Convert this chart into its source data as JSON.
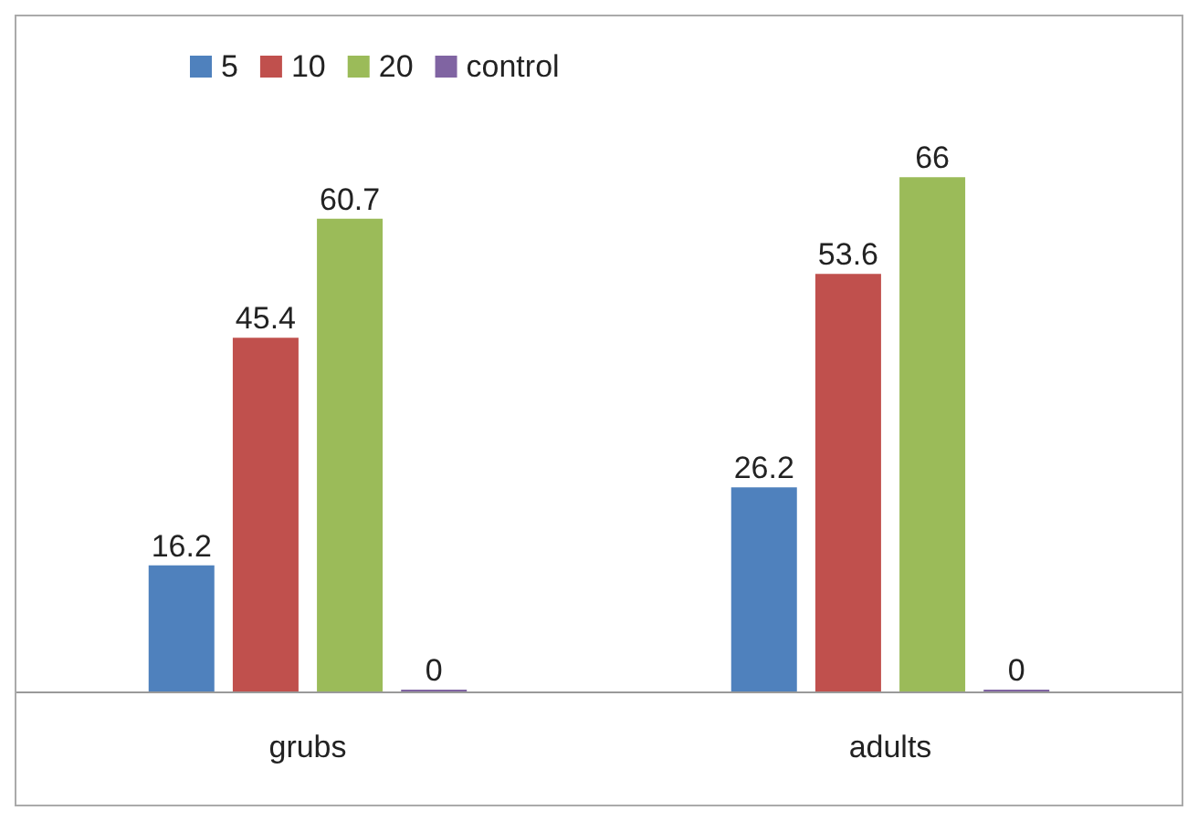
{
  "chart_data": {
    "type": "bar",
    "categories": [
      "grubs",
      "adults"
    ],
    "series": [
      {
        "name": "5",
        "color": "#4f81bd",
        "values": [
          16.2,
          26.2
        ]
      },
      {
        "name": "10",
        "color": "#c0504d",
        "values": [
          45.4,
          53.6
        ]
      },
      {
        "name": "20",
        "color": "#9bbb59",
        "values": [
          60.7,
          66
        ]
      },
      {
        "name": "control",
        "color": "#8064a2",
        "values": [
          0,
          0
        ]
      }
    ],
    "data_labels": true,
    "legend": "top left"
  }
}
